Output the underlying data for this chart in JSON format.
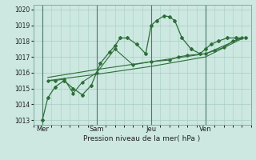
{
  "bg_color": "#cce8e0",
  "grid_color": "#a8ccc4",
  "line_color": "#2d6e3a",
  "xlabel": "Pression niveau de la mer( hPa )",
  "ylim": [
    1012.7,
    1020.3
  ],
  "yticks": [
    1013,
    1014,
    1015,
    1016,
    1017,
    1018,
    1019,
    1020
  ],
  "day_positions": [
    0.5,
    3.5,
    6.5,
    9.5
  ],
  "day_labels": [
    "Mer",
    "Sam",
    "Jeu",
    "Ven"
  ],
  "vline_positions": [
    0.5,
    3.5,
    6.5,
    9.5
  ],
  "xlim": [
    0,
    12
  ],
  "series1_x": [
    0.5,
    0.8,
    1.2,
    1.7,
    2.2,
    2.7,
    3.2,
    3.7,
    4.2,
    4.5,
    4.8,
    5.2,
    5.7,
    6.2,
    6.5,
    6.8,
    7.2,
    7.5,
    7.8,
    8.2,
    8.7,
    9.2,
    9.5,
    9.8,
    10.2,
    10.7,
    11.2,
    11.7
  ],
  "series1_y": [
    1013.0,
    1014.4,
    1015.1,
    1015.5,
    1015.0,
    1014.6,
    1015.2,
    1016.6,
    1017.3,
    1017.7,
    1018.2,
    1018.2,
    1017.8,
    1017.2,
    1019.0,
    1019.3,
    1019.6,
    1019.55,
    1019.3,
    1018.2,
    1017.5,
    1017.2,
    1017.5,
    1017.8,
    1018.0,
    1018.2,
    1018.2,
    1018.2
  ],
  "series2_x": [
    0.8,
    1.2,
    1.7,
    2.2,
    2.7,
    3.5,
    4.5,
    5.5,
    6.5,
    7.5,
    8.0,
    8.5,
    9.5,
    10.0,
    10.5,
    11.0,
    11.5
  ],
  "series2_y": [
    1015.5,
    1015.5,
    1015.6,
    1014.7,
    1015.4,
    1016.0,
    1017.5,
    1016.5,
    1016.7,
    1016.8,
    1017.0,
    1017.1,
    1017.2,
    1017.4,
    1017.6,
    1018.0,
    1018.2
  ],
  "series3_x": [
    0.8,
    3.5,
    6.5,
    9.5,
    11.5
  ],
  "series3_y": [
    1015.5,
    1015.9,
    1016.4,
    1017.0,
    1018.15
  ],
  "series4_x": [
    0.8,
    3.5,
    6.5,
    9.5,
    11.5
  ],
  "series4_y": [
    1015.7,
    1016.2,
    1016.7,
    1017.2,
    1018.2
  ]
}
